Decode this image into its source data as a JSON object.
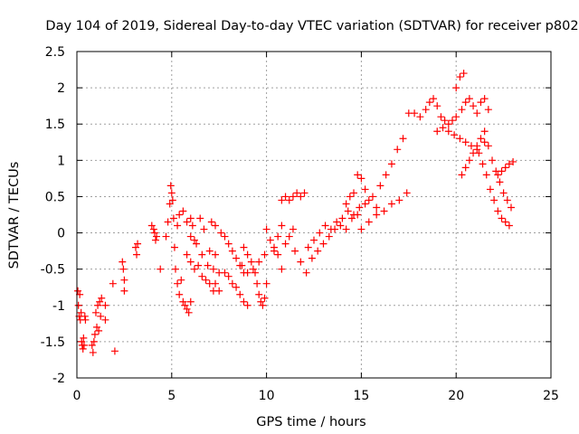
{
  "chart_data": {
    "type": "scatter",
    "title": "Day 104 of 2019, Sidereal Day-to-day VTEC variation (SDTVAR) for receiver p802",
    "xlabel": "GPS time / hours",
    "ylabel": "SDTVAR / TECUs",
    "xlim": [
      0,
      25
    ],
    "ylim": [
      -2,
      2.5
    ],
    "x_ticks": [
      "0",
      "5",
      "10",
      "15",
      "20",
      "25"
    ],
    "y_ticks": [
      "-2",
      "-1.5",
      "-1",
      "-0.5",
      "0",
      "0.5",
      "1",
      "1.5",
      "2",
      "2.5"
    ],
    "grid": true,
    "marker": "+",
    "color": "#ff0000",
    "series": [
      {
        "name": "SDTVAR",
        "points": [
          [
            0.05,
            -0.8
          ],
          [
            0.08,
            -1.0
          ],
          [
            0.12,
            -1.15
          ],
          [
            0.15,
            -0.85
          ],
          [
            0.18,
            -1.2
          ],
          [
            0.22,
            -1.1
          ],
          [
            0.25,
            -1.5
          ],
          [
            0.28,
            -1.55
          ],
          [
            0.32,
            -1.6
          ],
          [
            0.35,
            -1.45
          ],
          [
            0.38,
            -1.55
          ],
          [
            0.42,
            -1.15
          ],
          [
            0.45,
            -1.2
          ],
          [
            0.8,
            -1.55
          ],
          [
            0.85,
            -1.65
          ],
          [
            0.9,
            -1.5
          ],
          [
            0.95,
            -1.4
          ],
          [
            1.0,
            -1.1
          ],
          [
            1.05,
            -1.3
          ],
          [
            1.1,
            -1.0
          ],
          [
            1.15,
            -1.35
          ],
          [
            1.2,
            -0.95
          ],
          [
            1.25,
            -1.15
          ],
          [
            1.3,
            -0.9
          ],
          [
            1.5,
            -1.2
          ],
          [
            1.5,
            -1.0
          ],
          [
            1.9,
            -0.7
          ],
          [
            2.0,
            -1.63
          ],
          [
            2.4,
            -0.4
          ],
          [
            2.45,
            -0.5
          ],
          [
            2.5,
            -0.8
          ],
          [
            2.5,
            -0.65
          ],
          [
            3.1,
            -0.2
          ],
          [
            3.15,
            -0.3
          ],
          [
            3.2,
            -0.15
          ],
          [
            3.95,
            0.1
          ],
          [
            4.05,
            0.05
          ],
          [
            4.1,
            0.0
          ],
          [
            4.15,
            -0.1
          ],
          [
            4.2,
            -0.05
          ],
          [
            4.4,
            -0.5
          ],
          [
            4.7,
            -0.05
          ],
          [
            4.8,
            0.15
          ],
          [
            4.9,
            0.4
          ],
          [
            4.95,
            0.65
          ],
          [
            5.0,
            0.55
          ],
          [
            5.05,
            0.45
          ],
          [
            5.1,
            0.2
          ],
          [
            5.15,
            -0.2
          ],
          [
            5.2,
            -0.5
          ],
          [
            5.3,
            -0.7
          ],
          [
            5.4,
            -0.85
          ],
          [
            5.5,
            -0.65
          ],
          [
            5.6,
            -0.95
          ],
          [
            5.7,
            -1.0
          ],
          [
            5.8,
            -1.05
          ],
          [
            5.9,
            -1.1
          ],
          [
            6.0,
            -0.95
          ],
          [
            5.3,
            0.1
          ],
          [
            5.4,
            0.25
          ],
          [
            5.6,
            0.3
          ],
          [
            5.8,
            0.15
          ],
          [
            6.0,
            0.2
          ],
          [
            6.1,
            0.1
          ],
          [
            6.2,
            -0.1
          ],
          [
            5.8,
            -0.3
          ],
          [
            6.0,
            -0.4
          ],
          [
            6.2,
            -0.5
          ],
          [
            6.4,
            -0.45
          ],
          [
            6.6,
            -0.6
          ],
          [
            6.8,
            -0.65
          ],
          [
            7.0,
            -0.7
          ],
          [
            7.2,
            -0.8
          ],
          [
            7.3,
            -0.7
          ],
          [
            7.5,
            -0.8
          ],
          [
            6.0,
            -0.05
          ],
          [
            6.3,
            -0.15
          ],
          [
            6.6,
            -0.3
          ],
          [
            6.9,
            -0.45
          ],
          [
            7.2,
            -0.5
          ],
          [
            7.5,
            -0.55
          ],
          [
            6.5,
            0.2
          ],
          [
            6.7,
            0.05
          ],
          [
            7.0,
            -0.25
          ],
          [
            7.3,
            -0.3
          ],
          [
            7.1,
            0.15
          ],
          [
            7.3,
            0.1
          ],
          [
            7.6,
            0.0
          ],
          [
            7.8,
            -0.05
          ],
          [
            8.0,
            -0.15
          ],
          [
            8.2,
            -0.25
          ],
          [
            8.4,
            -0.35
          ],
          [
            8.6,
            -0.45
          ],
          [
            8.8,
            -0.55
          ],
          [
            7.8,
            -0.55
          ],
          [
            8.0,
            -0.6
          ],
          [
            8.2,
            -0.7
          ],
          [
            8.4,
            -0.75
          ],
          [
            8.6,
            -0.85
          ],
          [
            8.8,
            -0.95
          ],
          [
            9.0,
            -1.0
          ],
          [
            8.8,
            -0.2
          ],
          [
            9.0,
            -0.3
          ],
          [
            9.2,
            -0.4
          ],
          [
            9.4,
            -0.55
          ],
          [
            9.5,
            -0.7
          ],
          [
            9.6,
            -0.85
          ],
          [
            9.7,
            -0.95
          ],
          [
            9.8,
            -1.0
          ],
          [
            9.9,
            -0.9
          ],
          [
            10.0,
            -0.7
          ],
          [
            8.7,
            -0.45
          ],
          [
            9.0,
            -0.55
          ],
          [
            9.3,
            -0.5
          ],
          [
            9.6,
            -0.4
          ],
          [
            9.9,
            -0.3
          ],
          [
            10.0,
            0.05
          ],
          [
            10.2,
            -0.1
          ],
          [
            10.4,
            -0.2
          ],
          [
            10.6,
            -0.3
          ],
          [
            10.8,
            -0.5
          ],
          [
            10.4,
            -0.25
          ],
          [
            10.6,
            -0.05
          ],
          [
            10.8,
            0.1
          ],
          [
            11.0,
            -0.15
          ],
          [
            11.2,
            -0.05
          ],
          [
            11.4,
            0.05
          ],
          [
            10.8,
            0.45
          ],
          [
            11.0,
            0.5
          ],
          [
            11.2,
            0.45
          ],
          [
            11.4,
            0.5
          ],
          [
            11.6,
            0.55
          ],
          [
            11.8,
            0.5
          ],
          [
            12.0,
            0.55
          ],
          [
            11.5,
            -0.25
          ],
          [
            11.8,
            -0.4
          ],
          [
            12.1,
            -0.55
          ],
          [
            12.4,
            -0.35
          ],
          [
            12.7,
            -0.25
          ],
          [
            13.0,
            -0.15
          ],
          [
            13.3,
            -0.05
          ],
          [
            13.6,
            0.05
          ],
          [
            13.9,
            0.1
          ],
          [
            14.2,
            0.05
          ],
          [
            14.5,
            0.2
          ],
          [
            14.8,
            0.25
          ],
          [
            12.2,
            -0.2
          ],
          [
            12.5,
            -0.1
          ],
          [
            12.8,
            0.0
          ],
          [
            13.1,
            0.1
          ],
          [
            13.4,
            0.05
          ],
          [
            13.7,
            0.15
          ],
          [
            14.0,
            0.2
          ],
          [
            14.3,
            0.3
          ],
          [
            14.6,
            0.25
          ],
          [
            14.9,
            0.35
          ],
          [
            15.2,
            0.4
          ],
          [
            14.8,
            0.8
          ],
          [
            15.0,
            0.75
          ],
          [
            15.2,
            0.6
          ],
          [
            15.4,
            0.45
          ],
          [
            15.6,
            0.5
          ],
          [
            15.8,
            0.35
          ],
          [
            14.2,
            0.4
          ],
          [
            14.4,
            0.5
          ],
          [
            14.6,
            0.55
          ],
          [
            15.0,
            0.05
          ],
          [
            15.4,
            0.15
          ],
          [
            15.8,
            0.25
          ],
          [
            16.2,
            0.3
          ],
          [
            16.6,
            0.4
          ],
          [
            17.0,
            0.45
          ],
          [
            17.4,
            0.55
          ],
          [
            16.0,
            0.65
          ],
          [
            16.3,
            0.8
          ],
          [
            16.6,
            0.95
          ],
          [
            16.9,
            1.15
          ],
          [
            17.2,
            1.3
          ],
          [
            17.5,
            1.65
          ],
          [
            17.8,
            1.65
          ],
          [
            18.1,
            1.6
          ],
          [
            18.4,
            1.7
          ],
          [
            18.6,
            1.8
          ],
          [
            18.8,
            1.85
          ],
          [
            19.0,
            1.75
          ],
          [
            19.2,
            1.6
          ],
          [
            19.4,
            1.55
          ],
          [
            19.6,
            1.5
          ],
          [
            19.8,
            1.55
          ],
          [
            20.0,
            1.6
          ],
          [
            19.0,
            1.4
          ],
          [
            19.3,
            1.45
          ],
          [
            19.6,
            1.4
          ],
          [
            19.9,
            1.35
          ],
          [
            20.2,
            1.3
          ],
          [
            20.5,
            1.25
          ],
          [
            20.8,
            1.2
          ],
          [
            21.1,
            1.15
          ],
          [
            20.0,
            2.0
          ],
          [
            20.2,
            2.15
          ],
          [
            20.4,
            2.2
          ],
          [
            20.3,
            1.7
          ],
          [
            20.5,
            1.8
          ],
          [
            20.7,
            1.85
          ],
          [
            20.9,
            1.75
          ],
          [
            21.1,
            1.65
          ],
          [
            21.3,
            1.8
          ],
          [
            21.5,
            1.85
          ],
          [
            21.7,
            1.7
          ],
          [
            20.3,
            0.8
          ],
          [
            20.5,
            0.9
          ],
          [
            20.7,
            1.0
          ],
          [
            20.9,
            1.1
          ],
          [
            21.1,
            1.2
          ],
          [
            21.3,
            1.3
          ],
          [
            21.5,
            1.25
          ],
          [
            21.2,
            1.1
          ],
          [
            21.4,
            0.95
          ],
          [
            21.6,
            0.8
          ],
          [
            21.8,
            0.6
          ],
          [
            22.0,
            0.45
          ],
          [
            22.2,
            0.3
          ],
          [
            22.4,
            0.2
          ],
          [
            22.6,
            0.15
          ],
          [
            22.8,
            0.1
          ],
          [
            21.5,
            1.4
          ],
          [
            21.7,
            1.2
          ],
          [
            21.9,
            1.0
          ],
          [
            22.1,
            0.85
          ],
          [
            22.3,
            0.7
          ],
          [
            22.5,
            0.55
          ],
          [
            22.7,
            0.45
          ],
          [
            22.9,
            0.35
          ],
          [
            22.2,
            0.8
          ],
          [
            22.4,
            0.85
          ],
          [
            22.6,
            0.9
          ],
          [
            22.8,
            0.95
          ],
          [
            23.0,
            0.98
          ]
        ]
      }
    ]
  }
}
